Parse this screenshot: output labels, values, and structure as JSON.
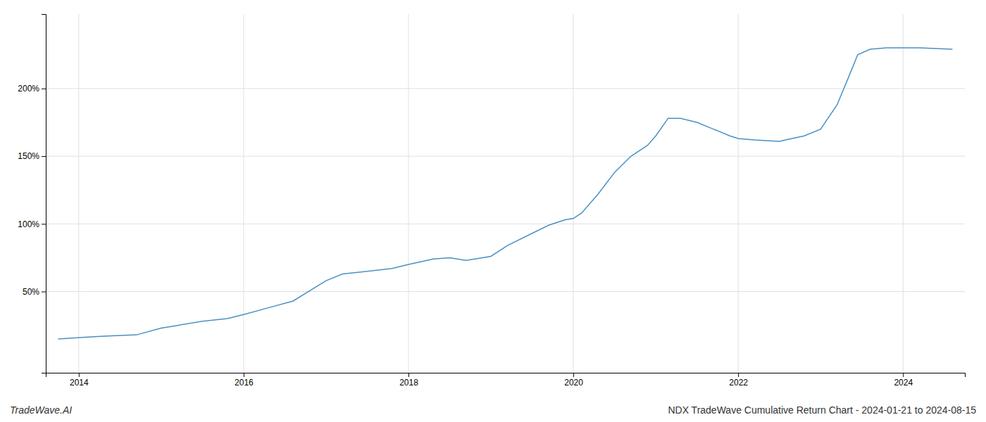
{
  "chart_data": {
    "type": "line",
    "title": "NDX TradeWave Cumulative Return Chart - 2024-01-21 to 2024-08-15",
    "annotations": [
      "TradeWave.AI"
    ],
    "color": "#4a90c4",
    "grid": true,
    "xlim": [
      2013.6,
      2024.75
    ],
    "xticks": [
      2014,
      2016,
      2018,
      2020,
      2022,
      2024
    ],
    "ylim": [
      -10,
      255
    ],
    "yticks": [
      {
        "value": 50,
        "label": "50%"
      },
      {
        "value": 100,
        "label": "100%"
      },
      {
        "value": 150,
        "label": "150%"
      },
      {
        "value": 200,
        "label": "200%"
      }
    ],
    "x": [
      2013.75,
      2014.0,
      2014.3,
      2014.7,
      2015.0,
      2015.2,
      2015.5,
      2015.8,
      2016.0,
      2016.3,
      2016.6,
      2017.0,
      2017.2,
      2017.5,
      2017.8,
      2018.0,
      2018.3,
      2018.5,
      2018.7,
      2019.0,
      2019.2,
      2019.5,
      2019.7,
      2019.9,
      2020.0,
      2020.1,
      2020.3,
      2020.5,
      2020.7,
      2020.9,
      2021.0,
      2021.15,
      2021.3,
      2021.5,
      2021.7,
      2021.9,
      2022.0,
      2022.2,
      2022.5,
      2022.65,
      2022.8,
      2023.0,
      2023.2,
      2023.35,
      2023.45,
      2023.6,
      2023.8,
      2024.0,
      2024.2,
      2024.6
    ],
    "values": [
      15,
      16,
      17,
      18,
      23,
      25,
      28,
      30,
      33,
      38,
      43,
      58,
      63,
      65,
      67,
      70,
      74,
      75,
      73,
      76,
      84,
      93,
      99,
      103,
      104,
      108,
      122,
      138,
      150,
      158,
      165,
      178,
      178,
      175,
      170,
      165,
      163,
      162,
      161,
      163,
      165,
      170,
      188,
      210,
      225,
      229,
      230,
      230,
      230,
      229
    ]
  }
}
